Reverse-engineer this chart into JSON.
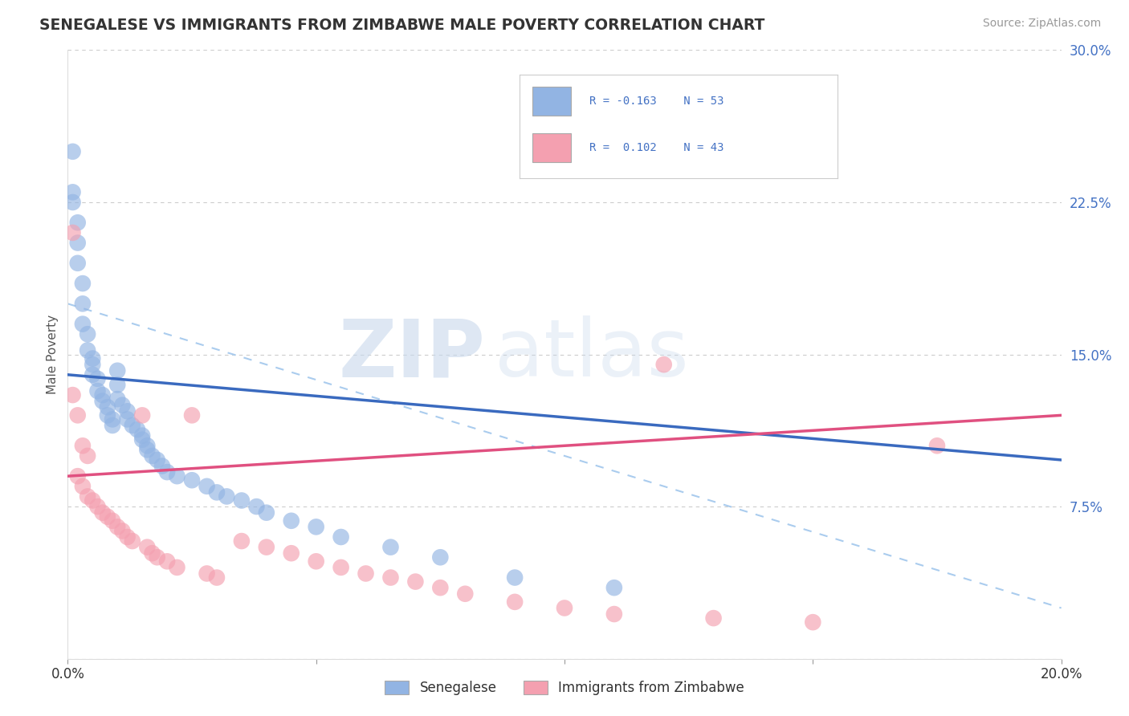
{
  "title": "SENEGALESE VS IMMIGRANTS FROM ZIMBABWE MALE POVERTY CORRELATION CHART",
  "source": "Source: ZipAtlas.com",
  "ylabel": "Male Poverty",
  "x_min": 0.0,
  "x_max": 0.2,
  "y_min": 0.0,
  "y_max": 0.3,
  "x_ticks": [
    0.0,
    0.05,
    0.1,
    0.15,
    0.2
  ],
  "y_ticks": [
    0.0,
    0.075,
    0.15,
    0.225,
    0.3
  ],
  "senegalese_color": "#92b4e3",
  "zimbabwe_color": "#f4a0b0",
  "senegalese_line_color": "#3a6abf",
  "zimbabwe_line_color": "#e05080",
  "senegalese_R": -0.163,
  "senegalese_N": 53,
  "zimbabwe_R": 0.102,
  "zimbabwe_N": 43,
  "legend_label_1": "Senegalese",
  "legend_label_2": "Immigrants from Zimbabwe",
  "watermark_zip": "ZIP",
  "watermark_atlas": "atlas",
  "background_color": "#ffffff",
  "grid_color": "#cccccc",
  "senegalese_x": [
    0.001,
    0.001,
    0.001,
    0.002,
    0.002,
    0.002,
    0.003,
    0.003,
    0.003,
    0.004,
    0.004,
    0.005,
    0.005,
    0.005,
    0.006,
    0.006,
    0.007,
    0.007,
    0.008,
    0.008,
    0.009,
    0.009,
    0.01,
    0.01,
    0.01,
    0.011,
    0.012,
    0.012,
    0.013,
    0.014,
    0.015,
    0.015,
    0.016,
    0.016,
    0.017,
    0.018,
    0.019,
    0.02,
    0.022,
    0.025,
    0.028,
    0.03,
    0.032,
    0.035,
    0.038,
    0.04,
    0.045,
    0.05,
    0.055,
    0.065,
    0.075,
    0.09,
    0.11
  ],
  "senegalese_y": [
    0.25,
    0.23,
    0.225,
    0.215,
    0.205,
    0.195,
    0.185,
    0.175,
    0.165,
    0.16,
    0.152,
    0.148,
    0.145,
    0.14,
    0.138,
    0.132,
    0.13,
    0.127,
    0.124,
    0.12,
    0.118,
    0.115,
    0.142,
    0.135,
    0.128,
    0.125,
    0.122,
    0.118,
    0.115,
    0.113,
    0.11,
    0.108,
    0.105,
    0.103,
    0.1,
    0.098,
    0.095,
    0.092,
    0.09,
    0.088,
    0.085,
    0.082,
    0.08,
    0.078,
    0.075,
    0.072,
    0.068,
    0.065,
    0.06,
    0.055,
    0.05,
    0.04,
    0.035
  ],
  "zimbabwe_x": [
    0.001,
    0.001,
    0.002,
    0.002,
    0.003,
    0.003,
    0.004,
    0.004,
    0.005,
    0.006,
    0.007,
    0.008,
    0.009,
    0.01,
    0.011,
    0.012,
    0.013,
    0.015,
    0.016,
    0.017,
    0.018,
    0.02,
    0.022,
    0.025,
    0.028,
    0.03,
    0.035,
    0.04,
    0.045,
    0.05,
    0.055,
    0.06,
    0.065,
    0.07,
    0.075,
    0.08,
    0.09,
    0.1,
    0.11,
    0.12,
    0.13,
    0.15,
    0.175
  ],
  "zimbabwe_y": [
    0.21,
    0.13,
    0.12,
    0.09,
    0.105,
    0.085,
    0.1,
    0.08,
    0.078,
    0.075,
    0.072,
    0.07,
    0.068,
    0.065,
    0.063,
    0.06,
    0.058,
    0.12,
    0.055,
    0.052,
    0.05,
    0.048,
    0.045,
    0.12,
    0.042,
    0.04,
    0.058,
    0.055,
    0.052,
    0.048,
    0.045,
    0.042,
    0.04,
    0.038,
    0.035,
    0.032,
    0.028,
    0.025,
    0.022,
    0.145,
    0.02,
    0.018,
    0.105
  ],
  "dashed_line": [
    [
      0.0,
      0.175
    ],
    [
      0.2,
      0.025
    ]
  ],
  "sen_trend_line": [
    [
      0.0,
      0.14
    ],
    [
      0.2,
      0.098
    ]
  ],
  "zim_trend_line": [
    [
      0.0,
      0.09
    ],
    [
      0.2,
      0.12
    ]
  ]
}
